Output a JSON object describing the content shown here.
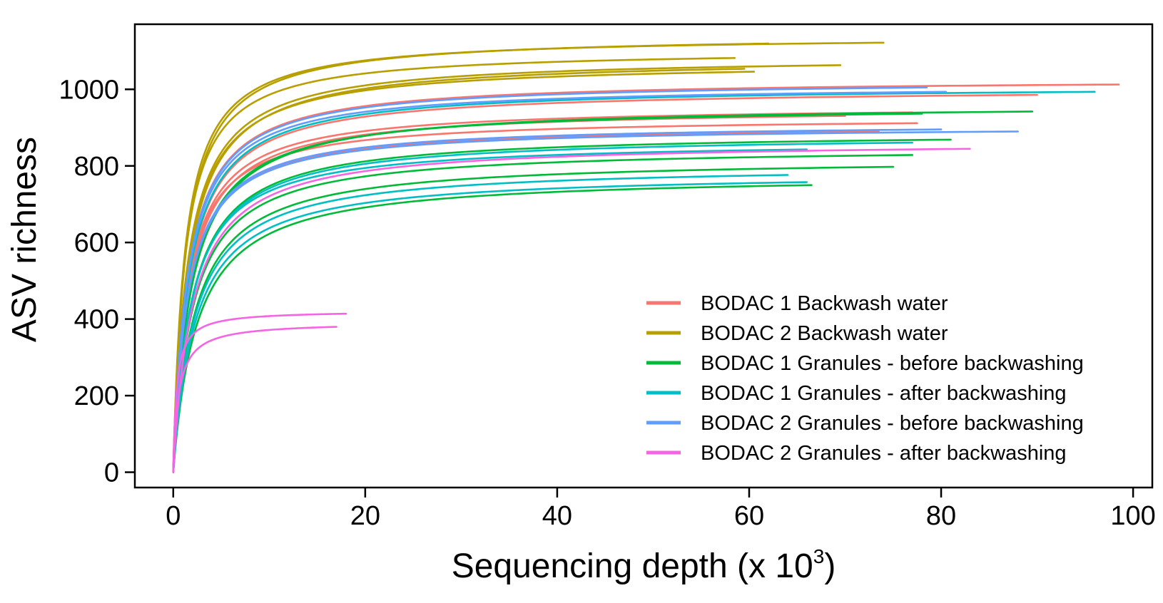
{
  "chart_data": {
    "type": "line",
    "title": "",
    "xlabel": "Sequencing depth (x 10",
    "xlabel_sup": "3",
    "xlabel_close": ")",
    "ylabel": "ASV richness",
    "xlim": [
      -4,
      102
    ],
    "ylim": [
      -40,
      1170
    ],
    "xticks": [
      0,
      20,
      40,
      60,
      80,
      100
    ],
    "yticks": [
      0,
      200,
      400,
      600,
      800,
      1000
    ],
    "grid": false,
    "legend_position": "bottom-right",
    "series": [
      {
        "name": "BODAC 1 Backwash water",
        "color": "#F8766D",
        "curves": [
          {
            "max_depth": 98.5,
            "asymptote": 1028,
            "half_sat": 1.5
          },
          {
            "max_depth": 90.0,
            "asymptote": 1003,
            "half_sat": 1.6
          },
          {
            "max_depth": 77.5,
            "asymptote": 928,
            "half_sat": 1.4
          },
          {
            "max_depth": 77.0,
            "asymptote": 958,
            "half_sat": 1.5
          },
          {
            "max_depth": 73.5,
            "asymptote": 908,
            "half_sat": 1.5
          },
          {
            "max_depth": 70.0,
            "asymptote": 952,
            "half_sat": 1.6
          }
        ]
      },
      {
        "name": "BODAC 2 Backwash water",
        "color": "#B79F00",
        "curves": [
          {
            "max_depth": 74.0,
            "asymptote": 1140,
            "half_sat": 1.2
          },
          {
            "max_depth": 62.0,
            "asymptote": 1143,
            "half_sat": 1.3
          },
          {
            "max_depth": 58.5,
            "asymptote": 1104,
            "half_sat": 1.2
          },
          {
            "max_depth": 69.5,
            "asymptote": 1086,
            "half_sat": 1.5
          },
          {
            "max_depth": 59.5,
            "asymptote": 1082,
            "half_sat": 1.6
          },
          {
            "max_depth": 60.5,
            "asymptote": 1072,
            "half_sat": 1.5
          }
        ]
      },
      {
        "name": "BODAC 1 Granules - before backwashing",
        "color": "#00BA38",
        "curves": [
          {
            "max_depth": 89.5,
            "asymptote": 962,
            "half_sat": 1.9
          },
          {
            "max_depth": 81.0,
            "asymptote": 889,
            "half_sat": 1.9
          },
          {
            "max_depth": 77.0,
            "asymptote": 850,
            "half_sat": 2.0
          },
          {
            "max_depth": 75.0,
            "asymptote": 821,
            "half_sat": 2.2
          },
          {
            "max_depth": 66.5,
            "asymptote": 778,
            "half_sat": 2.5
          },
          {
            "max_depth": 78.0,
            "asymptote": 958,
            "half_sat": 1.8
          }
        ]
      },
      {
        "name": "BODAC 1 Granules - after backwashing",
        "color": "#00BFC4",
        "curves": [
          {
            "max_depth": 96.0,
            "asymptote": 1010,
            "half_sat": 1.6
          },
          {
            "max_depth": 77.0,
            "asymptote": 882,
            "half_sat": 1.9
          },
          {
            "max_depth": 66.0,
            "asymptote": 866,
            "half_sat": 1.8
          },
          {
            "max_depth": 64.0,
            "asymptote": 803,
            "half_sat": 2.2
          },
          {
            "max_depth": 66.0,
            "asymptote": 784,
            "half_sat": 2.3
          }
        ]
      },
      {
        "name": "BODAC 2 Granules - before backwashing",
        "color": "#619CFF",
        "curves": [
          {
            "max_depth": 80.5,
            "asymptote": 1012,
            "half_sat": 1.5
          },
          {
            "max_depth": 78.5,
            "asymptote": 1024,
            "half_sat": 1.5
          },
          {
            "max_depth": 88.0,
            "asymptote": 905,
            "half_sat": 1.5
          },
          {
            "max_depth": 80.0,
            "asymptote": 912,
            "half_sat": 1.5
          }
        ]
      },
      {
        "name": "BODAC 2 Granules - after backwashing",
        "color": "#F564E3",
        "curves": [
          {
            "max_depth": 83.0,
            "asymptote": 865,
            "half_sat": 2.0
          },
          {
            "max_depth": 18.0,
            "asymptote": 422,
            "half_sat": 0.35
          },
          {
            "max_depth": 17.0,
            "asymptote": 392,
            "half_sat": 0.55
          }
        ]
      }
    ]
  }
}
